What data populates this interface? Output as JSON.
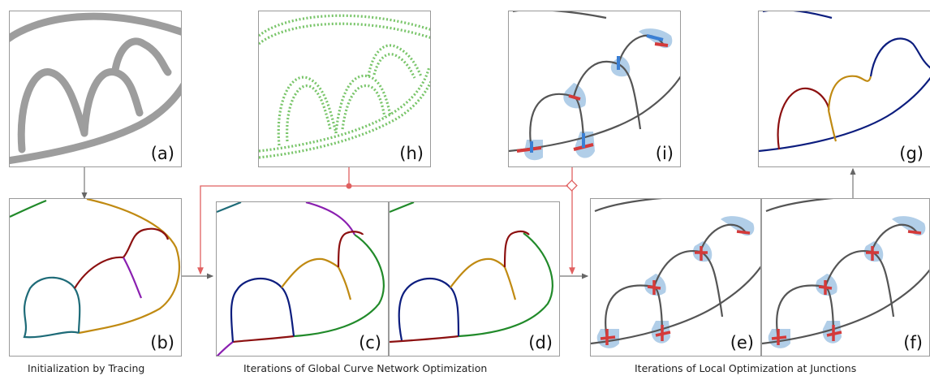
{
  "panels": {
    "a": "(a)",
    "h": "(h)",
    "i": "(i)",
    "g": "(g)",
    "b": "(b)",
    "c": "(c)",
    "d": "(d)",
    "e": "(e)",
    "f": "(f)"
  },
  "captions": {
    "tracing": "Initialization by Tracing",
    "global": "Iterations of Global Curve Network Optimization",
    "local": "Iterations of Local Optimization at Junctions"
  },
  "colors": {
    "flow_arrow": "#e06060",
    "gray_arrow": "#777777",
    "junction_blue": "#a9c9e6",
    "junction_red": "#d43a3a",
    "curve_gray": "#555555",
    "teal": "#1e6b78",
    "olive": "#c08a12",
    "darkred": "#8c1010",
    "purple": "#8a1fb0",
    "navy": "#0c1d7e",
    "green": "#218a2a",
    "field_green": "#6bbf5a"
  }
}
